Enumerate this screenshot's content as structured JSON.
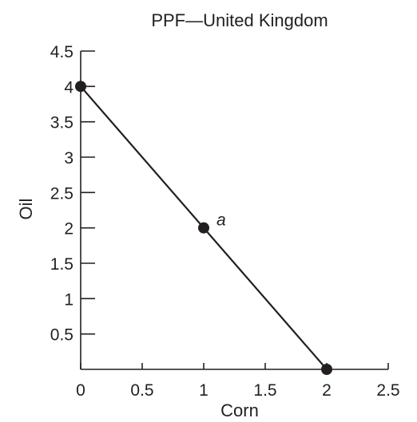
{
  "chart_data": {
    "type": "line",
    "title": "PPF—United Kingdom",
    "xlabel": "Corn",
    "ylabel": "Oil",
    "xlim": [
      0,
      2.5
    ],
    "ylim": [
      0,
      4.5
    ],
    "x_ticks": [
      "0",
      "0.5",
      "1",
      "1.5",
      "2",
      "2.5"
    ],
    "y_ticks": [
      "0.5",
      "1",
      "1.5",
      "2",
      "2.5",
      "3",
      "3.5",
      "4",
      "4.5"
    ],
    "grid": false,
    "series": [
      {
        "x": [
          0,
          2
        ],
        "y": [
          4,
          0
        ]
      }
    ],
    "points": [
      {
        "x": 0,
        "y": 4,
        "label": ""
      },
      {
        "x": 1,
        "y": 2,
        "label": "a"
      },
      {
        "x": 2,
        "y": 0,
        "label": ""
      }
    ]
  }
}
